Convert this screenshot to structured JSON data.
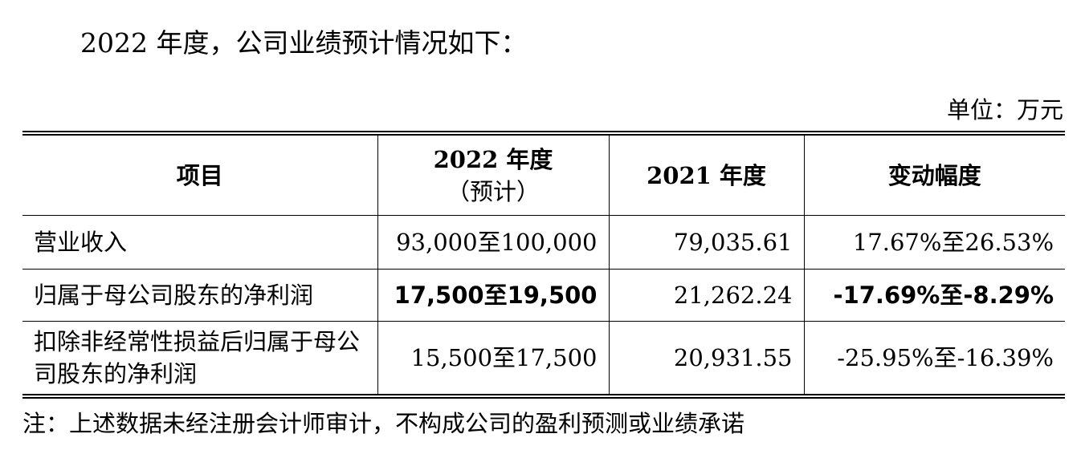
{
  "intro_text": "2022 年度，公司业绩预计情况如下：",
  "unit_text": "单位：万元",
  "table": {
    "headers": {
      "item": "项目",
      "y2022_line1": "2022 年度",
      "y2022_line2": "（预计）",
      "y2021": "2021 年度",
      "change": "变动幅度"
    },
    "rows": [
      {
        "item": "营业收入",
        "y2022": "93,000至100,000",
        "y2021": "79,035.61",
        "change": "17.67%至26.53%"
      },
      {
        "item": "归属于母公司股东的净利润",
        "y2022": "17,500至19,500",
        "y2021": "21,262.24",
        "change": "-17.69%至-8.29%"
      },
      {
        "item": "扣除非经常性损益后归属于母公司股东的净利润",
        "y2022": "15,500至17,500",
        "y2021": "20,931.55",
        "change": "-25.95%至-16.39%"
      }
    ]
  },
  "note_text": "注：上述数据未经注册会计师审计，不构成公司的盈利预测或业绩承诺"
}
